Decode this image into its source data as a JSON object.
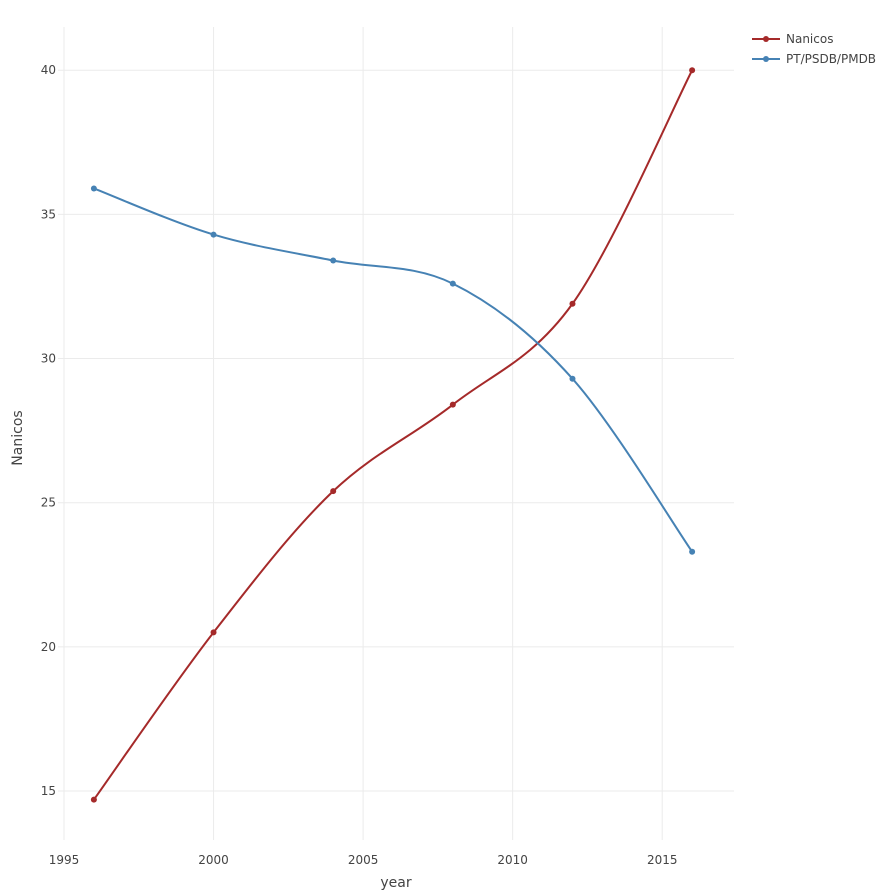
{
  "chart_data": {
    "type": "line",
    "title": "",
    "xlabel": "year",
    "ylabel": "Nanicos",
    "xlim": [
      1994.8,
      2017.4
    ],
    "ylim": [
      13.3,
      41.5
    ],
    "x_ticks": [
      1995,
      2000,
      2005,
      2010,
      2015
    ],
    "y_ticks": [
      15,
      20,
      25,
      30,
      35,
      40
    ],
    "grid": true,
    "legend_position": "top-right",
    "smooth": true,
    "x": [
      1996,
      2000,
      2004,
      2008,
      2012,
      2016
    ],
    "series": [
      {
        "name": "Nanicos",
        "color": "#a52a2a",
        "values": [
          14.7,
          20.5,
          25.4,
          28.4,
          31.9,
          40.0
        ]
      },
      {
        "name": "PT/PSDB/PMDB",
        "color": "#4682b4",
        "values": [
          35.9,
          34.3,
          33.4,
          32.6,
          29.3,
          23.3
        ]
      }
    ]
  }
}
